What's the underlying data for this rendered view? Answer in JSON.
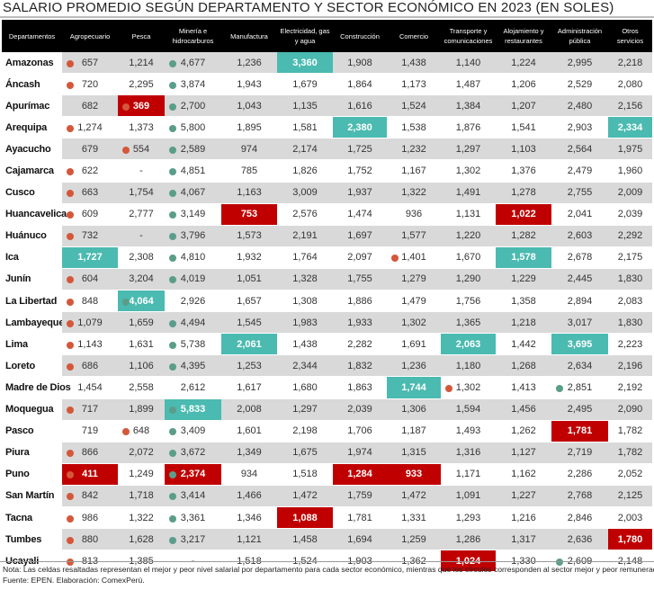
{
  "chart_data": {
    "type": "table",
    "title": "SALARIO PROMEDIO SEGÚN DEPARTAMENTO Y SECTOR ECONÓMICO EN 2023 (EN SOLES)",
    "columns": [
      "Departamentos",
      "Agropecuario",
      "Pesca",
      "Minería e hidrocarburos",
      "Manufactura",
      "Electricidad, gas y agua",
      "Construcción",
      "Comercio",
      "Transporte y comunicaciones",
      "Alojamiento y restaurantes",
      "Administración pública",
      "Otros servicios"
    ],
    "colors": {
      "best": "#4bbab0",
      "worst": "#c00000",
      "dot_red": "#d4573a",
      "dot_green": "#5a9e8a",
      "stripe": "#d9d9d9"
    },
    "rows": [
      {
        "name": "Amazonas",
        "cells": [
          {
            "v": "657",
            "d": "red"
          },
          {
            "v": "1,214"
          },
          {
            "v": "4,677",
            "d": "green"
          },
          {
            "v": "1,236"
          },
          {
            "v": "3,360",
            "h": "best"
          },
          {
            "v": "1,908"
          },
          {
            "v": "1,438"
          },
          {
            "v": "1,140"
          },
          {
            "v": "1,224"
          },
          {
            "v": "2,995"
          },
          {
            "v": "2,218"
          }
        ]
      },
      {
        "name": "Áncash",
        "cells": [
          {
            "v": "720",
            "d": "red"
          },
          {
            "v": "2,295"
          },
          {
            "v": "3,874",
            "d": "green"
          },
          {
            "v": "1,943"
          },
          {
            "v": "1,679"
          },
          {
            "v": "1,864"
          },
          {
            "v": "1,173"
          },
          {
            "v": "1,487"
          },
          {
            "v": "1,206"
          },
          {
            "v": "2,529"
          },
          {
            "v": "2,080"
          }
        ]
      },
      {
        "name": "Apurímac",
        "cells": [
          {
            "v": "682"
          },
          {
            "v": "369",
            "h": "worst",
            "d": "red"
          },
          {
            "v": "2,700",
            "d": "green"
          },
          {
            "v": "1,043"
          },
          {
            "v": "1,135"
          },
          {
            "v": "1,616"
          },
          {
            "v": "1,524"
          },
          {
            "v": "1,384"
          },
          {
            "v": "1,207"
          },
          {
            "v": "2,480"
          },
          {
            "v": "2,156"
          }
        ]
      },
      {
        "name": "Arequipa",
        "cells": [
          {
            "v": "1,274",
            "d": "red"
          },
          {
            "v": "1,373"
          },
          {
            "v": "5,800",
            "d": "green"
          },
          {
            "v": "1,895"
          },
          {
            "v": "1,581"
          },
          {
            "v": "2,380",
            "h": "best"
          },
          {
            "v": "1,538"
          },
          {
            "v": "1,876"
          },
          {
            "v": "1,541"
          },
          {
            "v": "2,903"
          },
          {
            "v": "2,334",
            "h": "best"
          }
        ]
      },
      {
        "name": "Ayacucho",
        "cells": [
          {
            "v": "679"
          },
          {
            "v": "554",
            "d": "red"
          },
          {
            "v": "2,589",
            "d": "green"
          },
          {
            "v": "974"
          },
          {
            "v": "2,174"
          },
          {
            "v": "1,725"
          },
          {
            "v": "1,232"
          },
          {
            "v": "1,297"
          },
          {
            "v": "1,103"
          },
          {
            "v": "2,564"
          },
          {
            "v": "1,975"
          }
        ]
      },
      {
        "name": "Cajamarca",
        "cells": [
          {
            "v": "622",
            "d": "red"
          },
          {
            "v": "-"
          },
          {
            "v": "4,851",
            "d": "green"
          },
          {
            "v": "785"
          },
          {
            "v": "1,826"
          },
          {
            "v": "1,752"
          },
          {
            "v": "1,167"
          },
          {
            "v": "1,302"
          },
          {
            "v": "1,376"
          },
          {
            "v": "2,479"
          },
          {
            "v": "1,960"
          }
        ]
      },
      {
        "name": "Cusco",
        "cells": [
          {
            "v": "663",
            "d": "red"
          },
          {
            "v": "1,754"
          },
          {
            "v": "4,067",
            "d": "green"
          },
          {
            "v": "1,163"
          },
          {
            "v": "3,009"
          },
          {
            "v": "1,937"
          },
          {
            "v": "1,322"
          },
          {
            "v": "1,491"
          },
          {
            "v": "1,278"
          },
          {
            "v": "2,755"
          },
          {
            "v": "2,009"
          }
        ]
      },
      {
        "name": "Huancavelica",
        "cells": [
          {
            "v": "609",
            "d": "red"
          },
          {
            "v": "2,777"
          },
          {
            "v": "3,149",
            "d": "green"
          },
          {
            "v": "753",
            "h": "worst"
          },
          {
            "v": "2,576"
          },
          {
            "v": "1,474"
          },
          {
            "v": "936"
          },
          {
            "v": "1,131"
          },
          {
            "v": "1,022",
            "h": "worst"
          },
          {
            "v": "2,041"
          },
          {
            "v": "2,039"
          }
        ]
      },
      {
        "name": "Huánuco",
        "cells": [
          {
            "v": "732",
            "d": "red"
          },
          {
            "v": "-"
          },
          {
            "v": "3,796",
            "d": "green"
          },
          {
            "v": "1,573"
          },
          {
            "v": "2,191"
          },
          {
            "v": "1,697"
          },
          {
            "v": "1,577"
          },
          {
            "v": "1,220"
          },
          {
            "v": "1,282"
          },
          {
            "v": "2,603"
          },
          {
            "v": "2,292"
          }
        ]
      },
      {
        "name": "Ica",
        "cells": [
          {
            "v": "1,727",
            "h": "best"
          },
          {
            "v": "2,308"
          },
          {
            "v": "4,810",
            "d": "green"
          },
          {
            "v": "1,932"
          },
          {
            "v": "1,764"
          },
          {
            "v": "2,097"
          },
          {
            "v": "1,401",
            "d": "red"
          },
          {
            "v": "1,670"
          },
          {
            "v": "1,578",
            "h": "best"
          },
          {
            "v": "2,678"
          },
          {
            "v": "2,175"
          }
        ]
      },
      {
        "name": "Junín",
        "cells": [
          {
            "v": "604",
            "d": "red"
          },
          {
            "v": "3,204"
          },
          {
            "v": "4,019",
            "d": "green"
          },
          {
            "v": "1,051"
          },
          {
            "v": "1,328"
          },
          {
            "v": "1,755"
          },
          {
            "v": "1,279"
          },
          {
            "v": "1,290"
          },
          {
            "v": "1,229"
          },
          {
            "v": "2,445"
          },
          {
            "v": "1,830"
          }
        ]
      },
      {
        "name": "La Libertad",
        "cells": [
          {
            "v": "848",
            "d": "red"
          },
          {
            "v": "4,064",
            "h": "best",
            "d": "green"
          },
          {
            "v": "2,926"
          },
          {
            "v": "1,657"
          },
          {
            "v": "1,308"
          },
          {
            "v": "1,886"
          },
          {
            "v": "1,479"
          },
          {
            "v": "1,756"
          },
          {
            "v": "1,358"
          },
          {
            "v": "2,894"
          },
          {
            "v": "2,083"
          }
        ]
      },
      {
        "name": "Lambayeque",
        "cells": [
          {
            "v": "1,079",
            "d": "red"
          },
          {
            "v": "1,659"
          },
          {
            "v": "4,494",
            "d": "green"
          },
          {
            "v": "1,545"
          },
          {
            "v": "1,983"
          },
          {
            "v": "1,933"
          },
          {
            "v": "1,302"
          },
          {
            "v": "1,365"
          },
          {
            "v": "1,218"
          },
          {
            "v": "3,017"
          },
          {
            "v": "1,830"
          }
        ]
      },
      {
        "name": "Lima",
        "cells": [
          {
            "v": "1,143",
            "d": "red"
          },
          {
            "v": "1,631"
          },
          {
            "v": "5,738",
            "d": "green"
          },
          {
            "v": "2,061",
            "h": "best"
          },
          {
            "v": "1,438"
          },
          {
            "v": "2,282"
          },
          {
            "v": "1,691"
          },
          {
            "v": "2,063",
            "h": "best"
          },
          {
            "v": "1,442"
          },
          {
            "v": "3,695",
            "h": "best"
          },
          {
            "v": "2,223"
          }
        ]
      },
      {
        "name": "Loreto",
        "cells": [
          {
            "v": "686",
            "d": "red"
          },
          {
            "v": "1,106"
          },
          {
            "v": "4,395",
            "d": "green"
          },
          {
            "v": "1,253"
          },
          {
            "v": "2,344"
          },
          {
            "v": "1,832"
          },
          {
            "v": "1,236"
          },
          {
            "v": "1,180"
          },
          {
            "v": "1,268"
          },
          {
            "v": "2,634"
          },
          {
            "v": "2,196"
          }
        ]
      },
      {
        "name": "Madre de Dios",
        "cells": [
          {
            "v": "1,454"
          },
          {
            "v": "2,558"
          },
          {
            "v": "2,612"
          },
          {
            "v": "1,617"
          },
          {
            "v": "1,680"
          },
          {
            "v": "1,863"
          },
          {
            "v": "1,744",
            "h": "best"
          },
          {
            "v": "1,302",
            "d": "red"
          },
          {
            "v": "1,413"
          },
          {
            "v": "2,851",
            "d": "green"
          },
          {
            "v": "2,192"
          }
        ]
      },
      {
        "name": "Moquegua",
        "cells": [
          {
            "v": "717",
            "d": "red"
          },
          {
            "v": "1,899"
          },
          {
            "v": "5,833",
            "h": "best",
            "d": "green"
          },
          {
            "v": "2,008"
          },
          {
            "v": "1,297"
          },
          {
            "v": "2,039"
          },
          {
            "v": "1,306"
          },
          {
            "v": "1,594"
          },
          {
            "v": "1,456"
          },
          {
            "v": "2,495"
          },
          {
            "v": "2,090"
          }
        ]
      },
      {
        "name": "Pasco",
        "cells": [
          {
            "v": "719"
          },
          {
            "v": "648",
            "d": "red"
          },
          {
            "v": "3,409",
            "d": "green"
          },
          {
            "v": "1,601"
          },
          {
            "v": "2,198"
          },
          {
            "v": "1,706"
          },
          {
            "v": "1,187"
          },
          {
            "v": "1,493"
          },
          {
            "v": "1,262"
          },
          {
            "v": "1,781",
            "h": "worst"
          },
          {
            "v": "1,782"
          }
        ]
      },
      {
        "name": "Piura",
        "cells": [
          {
            "v": "866",
            "d": "red"
          },
          {
            "v": "2,072"
          },
          {
            "v": "3,672",
            "d": "green"
          },
          {
            "v": "1,349"
          },
          {
            "v": "1,675"
          },
          {
            "v": "1,974"
          },
          {
            "v": "1,315"
          },
          {
            "v": "1,316"
          },
          {
            "v": "1,127"
          },
          {
            "v": "2,719"
          },
          {
            "v": "1,782"
          }
        ]
      },
      {
        "name": "Puno",
        "cells": [
          {
            "v": "411",
            "h": "worst",
            "d": "red"
          },
          {
            "v": "1,249"
          },
          {
            "v": "2,374",
            "h": "worst",
            "d": "green"
          },
          {
            "v": "934"
          },
          {
            "v": "1,518"
          },
          {
            "v": "1,284",
            "h": "worst"
          },
          {
            "v": "933",
            "h": "worst"
          },
          {
            "v": "1,171"
          },
          {
            "v": "1,162"
          },
          {
            "v": "2,286"
          },
          {
            "v": "2,052"
          }
        ]
      },
      {
        "name": "San Martín",
        "cells": [
          {
            "v": "842",
            "d": "red"
          },
          {
            "v": "1,718"
          },
          {
            "v": "3,414",
            "d": "green"
          },
          {
            "v": "1,466"
          },
          {
            "v": "1,472"
          },
          {
            "v": "1,759"
          },
          {
            "v": "1,472"
          },
          {
            "v": "1,091"
          },
          {
            "v": "1,227"
          },
          {
            "v": "2,768"
          },
          {
            "v": "2,125"
          }
        ]
      },
      {
        "name": "Tacna",
        "cells": [
          {
            "v": "986",
            "d": "red"
          },
          {
            "v": "1,322"
          },
          {
            "v": "3,361",
            "d": "green"
          },
          {
            "v": "1,346"
          },
          {
            "v": "1,088",
            "h": "worst"
          },
          {
            "v": "1,781"
          },
          {
            "v": "1,331"
          },
          {
            "v": "1,293"
          },
          {
            "v": "1,216"
          },
          {
            "v": "2,846"
          },
          {
            "v": "2,003"
          }
        ]
      },
      {
        "name": "Tumbes",
        "cells": [
          {
            "v": "880",
            "d": "red"
          },
          {
            "v": "1,628"
          },
          {
            "v": "3,217",
            "d": "green"
          },
          {
            "v": "1,121"
          },
          {
            "v": "1,458"
          },
          {
            "v": "1,694"
          },
          {
            "v": "1,259"
          },
          {
            "v": "1,286"
          },
          {
            "v": "1,317"
          },
          {
            "v": "2,636"
          },
          {
            "v": "1,780",
            "h": "worst"
          }
        ]
      },
      {
        "name": "Ucayali",
        "cells": [
          {
            "v": "813",
            "d": "red"
          },
          {
            "v": "1,385"
          },
          {
            "v": "-"
          },
          {
            "v": "1,518"
          },
          {
            "v": "1,524"
          },
          {
            "v": "1,903"
          },
          {
            "v": "1,362"
          },
          {
            "v": "1,024",
            "h": "worst"
          },
          {
            "v": "1,330"
          },
          {
            "v": "2,609",
            "d": "green"
          },
          {
            "v": "2,148"
          }
        ]
      }
    ]
  },
  "notes": {
    "nota": "Nota: Las celdas resaltadas representan el mejor y peor nivel salarial por departamento para cada sector económico, mientras que los círculos corresponden al sector mejor y peor remunerado",
    "fuente": "Fuente: EPEN. Elaboración: ComexPerú."
  }
}
